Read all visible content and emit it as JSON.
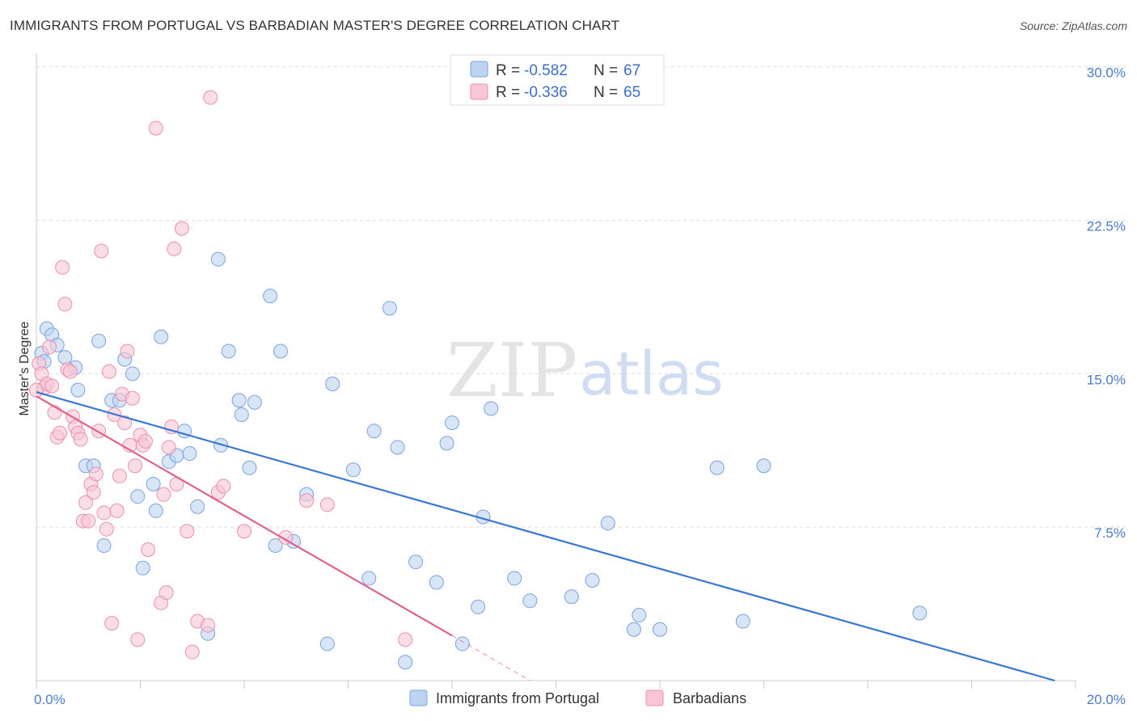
{
  "title": "IMMIGRANTS FROM PORTUGAL VS BARBADIAN MASTER'S DEGREE CORRELATION CHART",
  "source": "Source: ZipAtlas.com",
  "watermark": {
    "zip": "ZIP",
    "atlas": "atlas"
  },
  "legend": {
    "r_label": "R =",
    "n_label": "N =",
    "series": [
      {
        "r": "-0.582",
        "n": "67",
        "fill": "#bcd3f2",
        "stroke": "#7aa3e0"
      },
      {
        "r": "-0.336",
        "n": "65",
        "fill": "#f9c6d6",
        "stroke": "#ec8fae"
      }
    ]
  },
  "chart_data": {
    "type": "scatter",
    "ylabel": "Master's Degree",
    "xlim": [
      0,
      20
    ],
    "ylim": [
      0,
      30.5
    ],
    "x_tick_labels": {
      "min": "0.0%",
      "max": "20.0%"
    },
    "y_ticks": [
      7.5,
      15.0,
      22.5,
      30.0
    ],
    "y_tick_labels": [
      "7.5%",
      "15.0%",
      "22.5%",
      "30.0%"
    ],
    "grid": true,
    "series": [
      {
        "name": "Immigrants from Portugal",
        "color": "#3b78d0",
        "fill": "#bcd3f2",
        "trend": {
          "x0": 0.0,
          "y0": 14.1,
          "x1": 19.6,
          "y1": 0.0
        },
        "points": [
          [
            0.1,
            16.0
          ],
          [
            0.2,
            17.2
          ],
          [
            0.3,
            16.9
          ],
          [
            0.4,
            16.4
          ],
          [
            0.55,
            15.8
          ],
          [
            0.75,
            15.3
          ],
          [
            0.8,
            14.2
          ],
          [
            0.95,
            10.5
          ],
          [
            1.1,
            10.5
          ],
          [
            1.2,
            16.6
          ],
          [
            1.3,
            6.6
          ],
          [
            1.45,
            13.7
          ],
          [
            1.6,
            13.7
          ],
          [
            1.7,
            15.7
          ],
          [
            1.85,
            15.0
          ],
          [
            1.95,
            9.0
          ],
          [
            2.05,
            5.5
          ],
          [
            2.25,
            9.6
          ],
          [
            2.3,
            8.3
          ],
          [
            2.4,
            16.8
          ],
          [
            2.55,
            10.7
          ],
          [
            2.7,
            11.0
          ],
          [
            2.85,
            12.2
          ],
          [
            2.95,
            11.1
          ],
          [
            3.1,
            8.5
          ],
          [
            3.3,
            2.3
          ],
          [
            3.5,
            20.6
          ],
          [
            3.55,
            11.5
          ],
          [
            3.7,
            16.1
          ],
          [
            3.9,
            13.7
          ],
          [
            3.95,
            13.0
          ],
          [
            4.1,
            10.4
          ],
          [
            4.2,
            13.6
          ],
          [
            4.5,
            18.8
          ],
          [
            4.6,
            6.6
          ],
          [
            4.7,
            16.1
          ],
          [
            4.95,
            6.8
          ],
          [
            5.2,
            9.1
          ],
          [
            5.6,
            1.8
          ],
          [
            5.7,
            14.5
          ],
          [
            6.1,
            10.3
          ],
          [
            6.4,
            5.0
          ],
          [
            6.5,
            12.2
          ],
          [
            6.8,
            18.2
          ],
          [
            6.95,
            11.4
          ],
          [
            7.1,
            0.9
          ],
          [
            7.3,
            5.8
          ],
          [
            7.7,
            4.8
          ],
          [
            7.9,
            11.6
          ],
          [
            8.0,
            12.6
          ],
          [
            8.2,
            1.8
          ],
          [
            8.5,
            3.6
          ],
          [
            8.6,
            8.0
          ],
          [
            8.75,
            13.3
          ],
          [
            9.2,
            5.0
          ],
          [
            9.5,
            3.9
          ],
          [
            10.3,
            4.1
          ],
          [
            10.7,
            4.9
          ],
          [
            11.0,
            7.7
          ],
          [
            11.5,
            2.5
          ],
          [
            11.6,
            3.2
          ],
          [
            12.0,
            2.5
          ],
          [
            13.1,
            10.4
          ],
          [
            13.6,
            2.9
          ],
          [
            14.0,
            10.5
          ],
          [
            17.0,
            3.3
          ],
          [
            0.15,
            15.6
          ]
        ]
      },
      {
        "name": "Barbadians",
        "color": "#e0608d",
        "fill": "#f9c6d6",
        "trend": {
          "x0": 0.0,
          "y0": 13.9,
          "x1": 8.0,
          "y1": 2.2
        },
        "trend_dashed": {
          "x0": 8.0,
          "y0": 2.2,
          "x1": 9.5,
          "y1": 0.0
        },
        "points": [
          [
            0.05,
            15.5
          ],
          [
            0.1,
            15.0
          ],
          [
            0.15,
            14.3
          ],
          [
            0.2,
            14.5
          ],
          [
            0.25,
            16.3
          ],
          [
            0.3,
            14.4
          ],
          [
            0.35,
            13.1
          ],
          [
            0.4,
            11.9
          ],
          [
            0.45,
            12.1
          ],
          [
            0.5,
            20.2
          ],
          [
            0.55,
            18.4
          ],
          [
            0.6,
            15.2
          ],
          [
            0.65,
            15.1
          ],
          [
            0.7,
            12.9
          ],
          [
            0.75,
            12.4
          ],
          [
            0.8,
            12.1
          ],
          [
            0.85,
            11.8
          ],
          [
            0.9,
            7.8
          ],
          [
            0.95,
            8.7
          ],
          [
            1.0,
            7.8
          ],
          [
            1.05,
            9.6
          ],
          [
            1.1,
            9.2
          ],
          [
            1.15,
            10.1
          ],
          [
            1.2,
            12.2
          ],
          [
            1.25,
            21.0
          ],
          [
            1.3,
            8.2
          ],
          [
            1.35,
            7.4
          ],
          [
            1.4,
            15.1
          ],
          [
            1.45,
            2.8
          ],
          [
            1.5,
            13.0
          ],
          [
            1.55,
            8.3
          ],
          [
            1.6,
            10.0
          ],
          [
            1.65,
            14.0
          ],
          [
            1.7,
            12.6
          ],
          [
            1.75,
            16.1
          ],
          [
            1.8,
            11.5
          ],
          [
            1.85,
            13.8
          ],
          [
            1.9,
            10.5
          ],
          [
            1.95,
            2.0
          ],
          [
            2.0,
            12.0
          ],
          [
            2.05,
            11.5
          ],
          [
            2.1,
            11.7
          ],
          [
            2.15,
            6.4
          ],
          [
            2.3,
            27.0
          ],
          [
            2.4,
            3.8
          ],
          [
            2.45,
            9.1
          ],
          [
            2.5,
            4.3
          ],
          [
            2.55,
            11.4
          ],
          [
            2.6,
            12.4
          ],
          [
            2.65,
            21.1
          ],
          [
            2.7,
            9.6
          ],
          [
            2.8,
            22.1
          ],
          [
            2.9,
            7.3
          ],
          [
            3.0,
            1.4
          ],
          [
            3.1,
            2.9
          ],
          [
            3.3,
            2.7
          ],
          [
            3.35,
            28.5
          ],
          [
            3.5,
            9.2
          ],
          [
            3.6,
            9.5
          ],
          [
            4.0,
            7.3
          ],
          [
            4.8,
            7.0
          ],
          [
            5.2,
            8.8
          ],
          [
            5.6,
            8.6
          ],
          [
            7.1,
            2.0
          ],
          [
            0.0,
            14.2
          ]
        ]
      }
    ]
  }
}
